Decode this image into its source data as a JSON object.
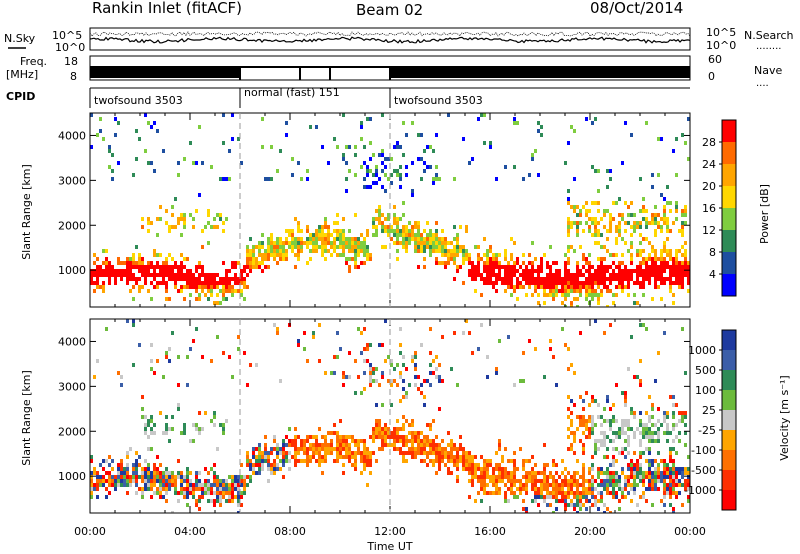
{
  "header": {
    "station": "Rankin Inlet (fitACF)",
    "beam": "Beam 02",
    "date": "08/Oct/2014"
  },
  "noise_panel": {
    "left_label": "N.Sky",
    "right_label": "N.Search",
    "right_legend_mark": "........",
    "left_ticks": [
      "10^5",
      "10^0"
    ],
    "right_ticks": [
      "10^5",
      "10^0"
    ]
  },
  "freq_panel": {
    "left_label_1": "Freq.",
    "left_label_2": "[MHz]",
    "right_label": "Nave",
    "right_legend_mark": "....",
    "left_ticks": [
      "18",
      "8"
    ],
    "right_ticks": [
      "60",
      "0"
    ]
  },
  "cpid_panel": {
    "label": "CPID",
    "segments": [
      {
        "text": "twofsound 3503",
        "start_hr": 0,
        "end_hr": 6
      },
      {
        "text": "normal (fast) 151",
        "start_hr": 6,
        "end_hr": 12
      },
      {
        "text": "twofsound 3503",
        "start_hr": 12,
        "end_hr": 24
      }
    ]
  },
  "power_scale": {
    "title": "Power [dB]",
    "ticks": [
      "28",
      "24",
      "20",
      "16",
      "12",
      "8",
      "4"
    ],
    "colors": [
      "#ff0000",
      "#ff6a00",
      "#ffa500",
      "#ffd700",
      "#7fcd3f",
      "#2e8b57",
      "#1e4fa0",
      "#0000ff"
    ]
  },
  "velocity_scale": {
    "title": "Velocity [m s⁻¹]",
    "ticks": [
      "1000",
      "500",
      "100",
      "25",
      "-25",
      "-100",
      "-500",
      "-1000"
    ],
    "colors": [
      "#1e3a9f",
      "#3b5ea8",
      "#2e8b57",
      "#6cbb3c",
      "#c8c8c8",
      "#ffa500",
      "#ff7000",
      "#ff3000",
      "#ff0000"
    ]
  },
  "x_axis": {
    "label": "Time UT",
    "ticks": [
      "00:00",
      "04:00",
      "08:00",
      "12:00",
      "16:00",
      "20:00",
      "00:00"
    ]
  },
  "chart_data": {
    "type": "heatmap",
    "panels": [
      {
        "name": "Power",
        "ylabel": "Slant Range [km]",
        "unit": "dB",
        "ylim": [
          180,
          4500
        ],
        "yticks": [
          1000,
          2000,
          3000,
          4000
        ]
      },
      {
        "name": "Velocity",
        "ylabel": "Slant Range [km]",
        "unit": "m s⁻¹",
        "ylim": [
          180,
          4500
        ],
        "yticks": [
          1000,
          2000,
          3000,
          4000
        ]
      }
    ],
    "xlim_hours": [
      0,
      24
    ],
    "xlabel": "Time UT",
    "mode_change_hours": [
      6,
      12
    ]
  }
}
